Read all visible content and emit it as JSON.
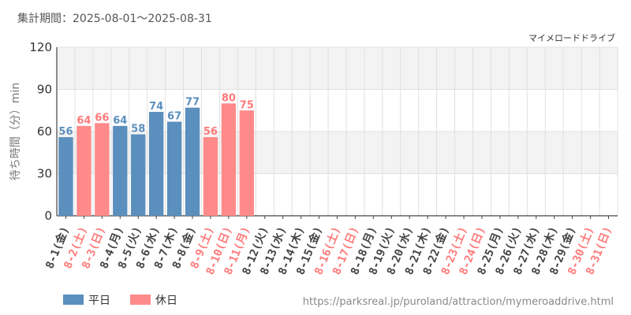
{
  "header": {
    "period": "集計期間：2025-08-01～2025-08-31",
    "attraction": "マイメロードドライブ"
  },
  "source_url": "https://parksreal.jp/puroland/attraction/mymeroaddrive.html",
  "colors": {
    "weekday": "#5b8fbd",
    "holiday": "#ff8a8a",
    "grid": "#e0e0e0",
    "band": "#f3f3f3",
    "weekday_text": "#5b8fbd",
    "holiday_text": "#ff7a7a"
  },
  "chart_data": {
    "type": "bar",
    "ylabel": "待ち時間（分）min",
    "ylim": [
      0,
      120
    ],
    "yticks": [
      0,
      30,
      60,
      90,
      120
    ],
    "grid": true,
    "legend_position": "bottom-left",
    "categories": [
      "8-1(金)",
      "8-2(土)",
      "8-3(日)",
      "8-4(月)",
      "8-5(火)",
      "8-6(水)",
      "8-7(木)",
      "8-8(金)",
      "8-9(土)",
      "8-10(日)",
      "8-11(月)",
      "8-12(火)",
      "8-13(水)",
      "8-14(木)",
      "8-15(金)",
      "8-16(土)",
      "8-17(日)",
      "8-18(月)",
      "8-19(火)",
      "8-20(水)",
      "8-21(木)",
      "8-22(金)",
      "8-23(土)",
      "8-24(日)",
      "8-25(月)",
      "8-26(火)",
      "8-27(水)",
      "8-28(木)",
      "8-29(金)",
      "8-30(土)",
      "8-31(日)"
    ],
    "holiday": [
      false,
      true,
      true,
      false,
      false,
      false,
      false,
      false,
      true,
      true,
      true,
      false,
      false,
      false,
      false,
      true,
      true,
      false,
      false,
      false,
      false,
      false,
      true,
      true,
      false,
      false,
      false,
      false,
      false,
      true,
      true
    ],
    "values": [
      56,
      64,
      66,
      64,
      58,
      74,
      67,
      77,
      56,
      80,
      75,
      null,
      null,
      null,
      null,
      null,
      null,
      null,
      null,
      null,
      null,
      null,
      null,
      null,
      null,
      null,
      null,
      null,
      null,
      null,
      null
    ],
    "legend": [
      {
        "name": "平日",
        "color": "#5b8fbd"
      },
      {
        "name": "休日",
        "color": "#ff8a8a"
      }
    ]
  }
}
